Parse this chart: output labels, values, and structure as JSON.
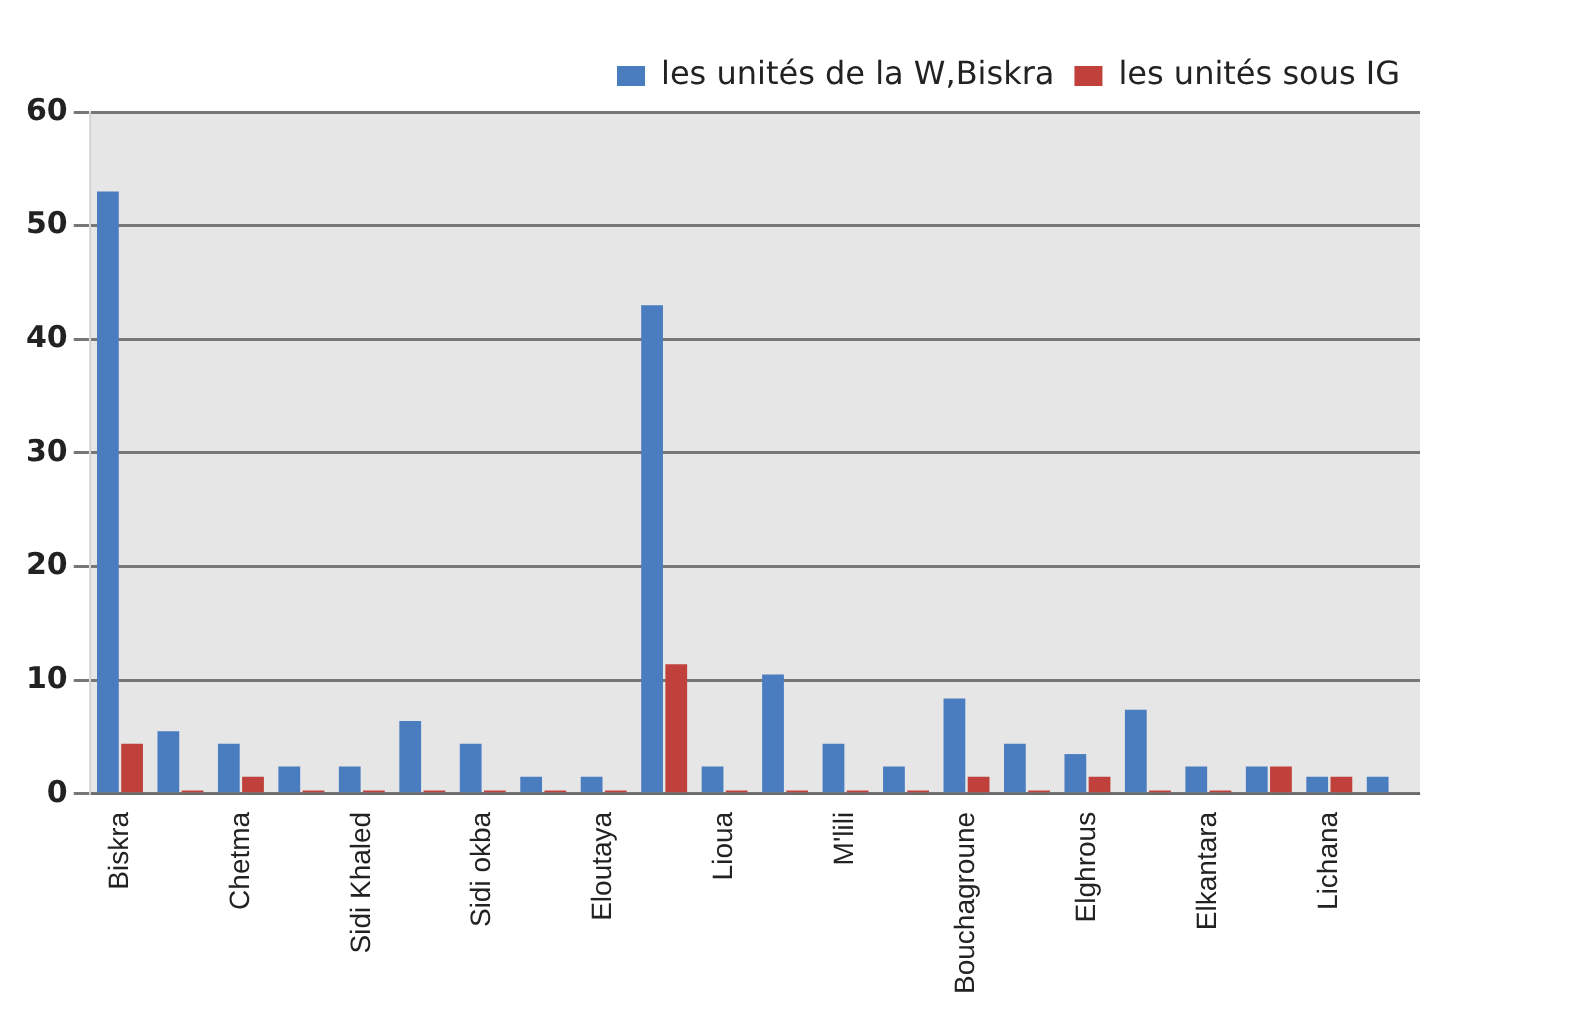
{
  "chart_data": {
    "type": "bar",
    "categories": [
      "Biskra",
      null,
      "Chetma",
      null,
      "Sidi Khaled",
      null,
      "Sidi okba",
      null,
      "Eloutaya",
      null,
      "Lioua",
      null,
      "M'lili",
      null,
      "Bouchagroune",
      null,
      "Elghrous",
      null,
      "Elkantara",
      null,
      "Lichana",
      null
    ],
    "series": [
      {
        "name": "les unités de la W,Biskra",
        "color": "#4a7cc0",
        "values": [
          53,
          5.5,
          4.4,
          2.4,
          2.4,
          6.4,
          4.4,
          1.5,
          1.5,
          43,
          2.4,
          10.5,
          4.4,
          2.4,
          8.4,
          4.4,
          3.5,
          7.4,
          2.4,
          2.4,
          1.5,
          1.5
        ]
      },
      {
        "name": "les unités sous IG",
        "color": "#c0413c",
        "values": [
          4.4,
          0.3,
          1.5,
          0.3,
          0.3,
          0.3,
          0.3,
          0.3,
          0.3,
          11.4,
          0.3,
          0.3,
          0.3,
          0.3,
          1.5,
          0.3,
          1.5,
          0.3,
          0.3,
          2.4,
          1.5,
          0
        ]
      }
    ],
    "ylim": [
      0,
      60
    ],
    "yticks": [
      0,
      10,
      20,
      30,
      40,
      50,
      60
    ],
    "grid": "y",
    "legend": "top right"
  }
}
